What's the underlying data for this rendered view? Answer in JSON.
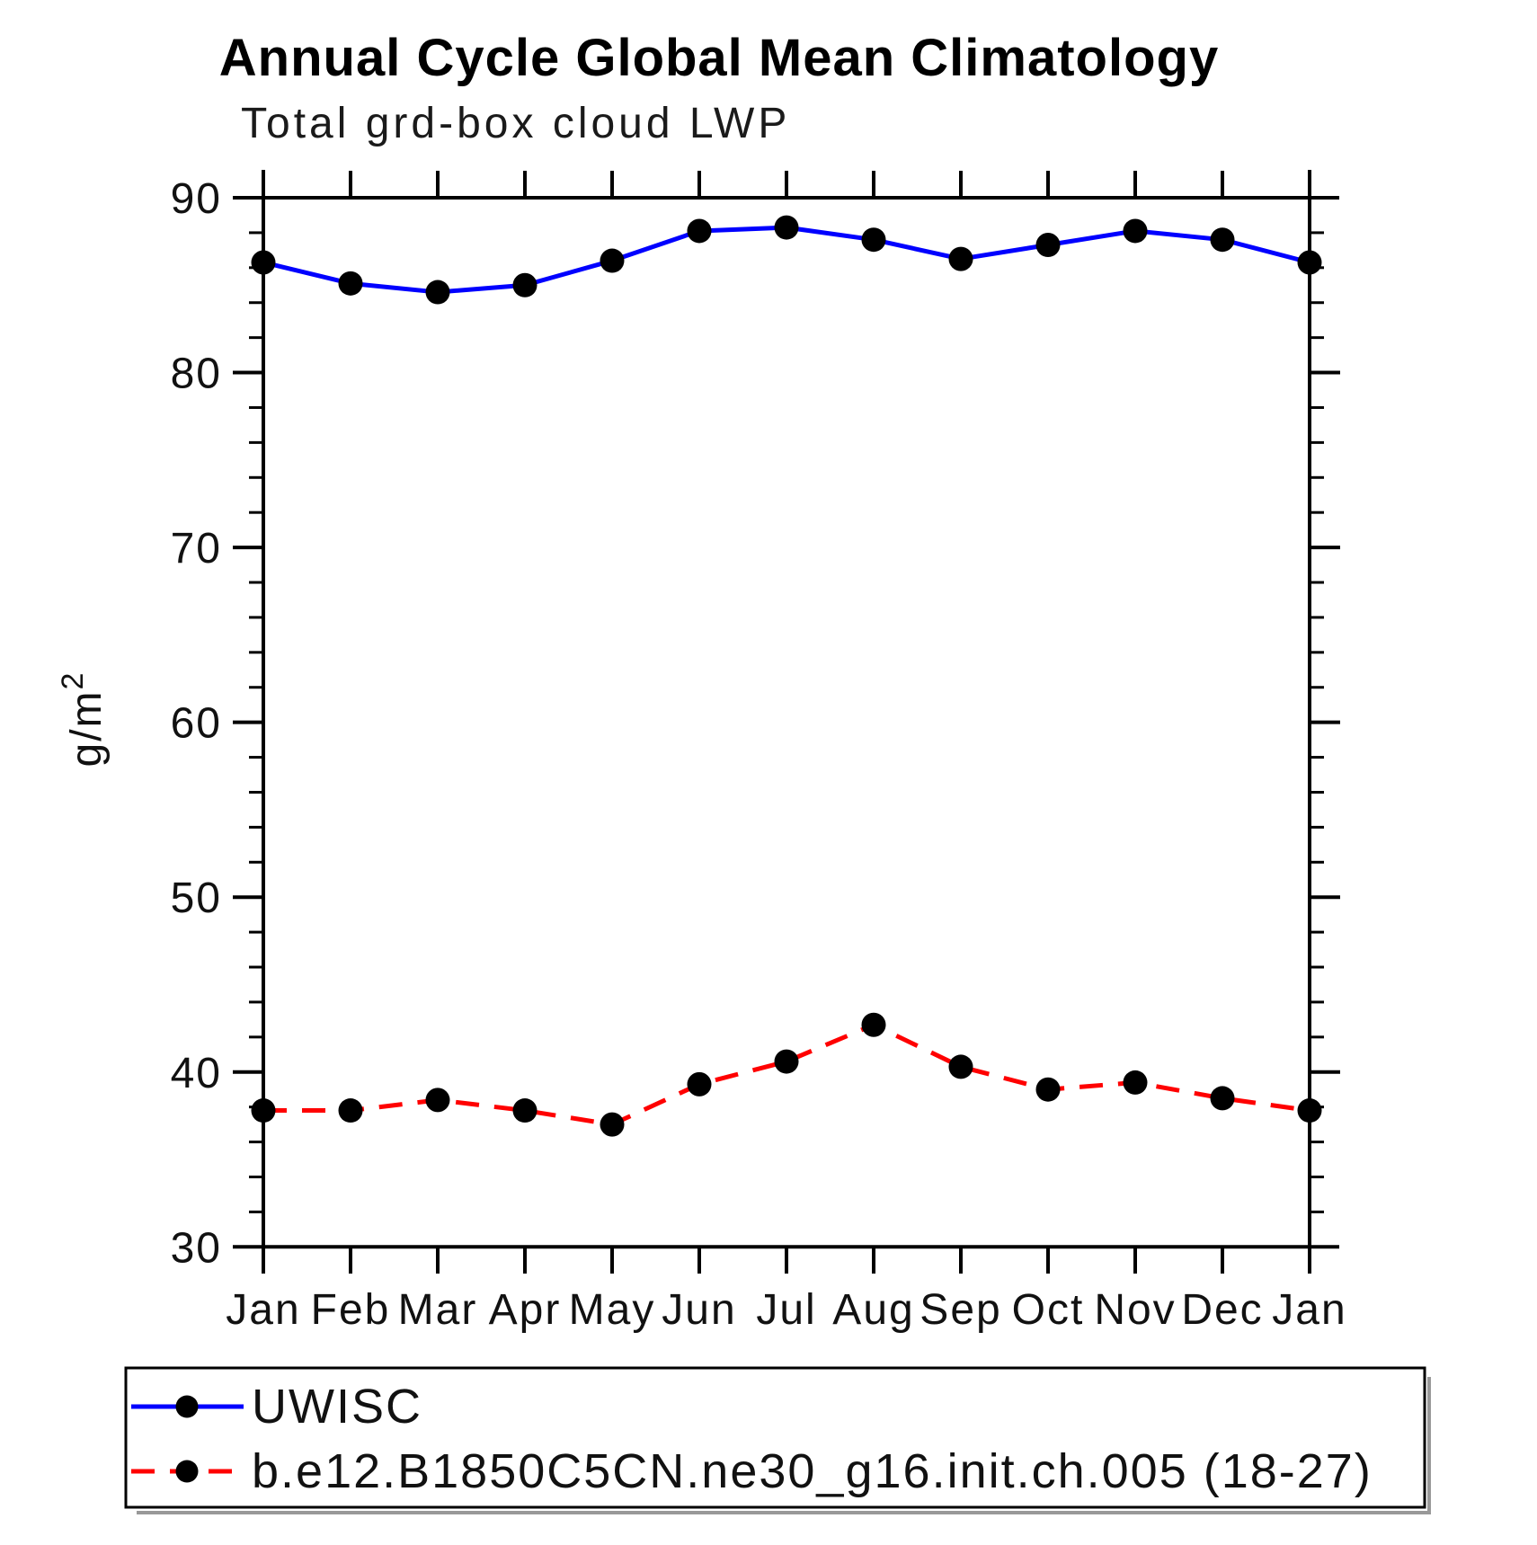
{
  "page": {
    "background": "#ffffff"
  },
  "chart_data": {
    "type": "line",
    "title": "Annual Cycle Global Mean Climatology",
    "subtitle": "Total grd-box cloud LWP",
    "ylabel": "g/m²",
    "ylabel_base": "g/m",
    "ylabel_sup": "2",
    "categories": [
      "Jan",
      "Feb",
      "Mar",
      "Apr",
      "May",
      "Jun",
      "Jul",
      "Aug",
      "Sep",
      "Oct",
      "Nov",
      "Dec",
      "Jan"
    ],
    "yticks": [
      "90",
      "80",
      "70",
      "60",
      "50",
      "40",
      "30"
    ],
    "ylim": [
      30,
      90
    ],
    "minor_tick_step": 2,
    "major_tick_step": 10,
    "grid": "off",
    "legend_position": "bottom",
    "marker_color": "#000000",
    "series": [
      {
        "name": "UWISC",
        "color": "#0000ff",
        "line_style": "solid",
        "marker": "filled-circle",
        "values": [
          86.3,
          85.1,
          84.6,
          85.0,
          86.4,
          88.1,
          88.3,
          87.6,
          86.5,
          87.3,
          88.1,
          87.6,
          86.3
        ]
      },
      {
        "name": "b.e12.B1850C5CN.ne30_g16.init.ch.005 (18-27)",
        "color": "#ff0000",
        "line_style": "dashed",
        "dash": "26 17",
        "marker": "filled-circle",
        "values": [
          37.8,
          37.8,
          38.4,
          37.8,
          37.0,
          39.3,
          40.6,
          42.7,
          40.3,
          39.0,
          39.4,
          38.5,
          37.8
        ]
      }
    ]
  }
}
